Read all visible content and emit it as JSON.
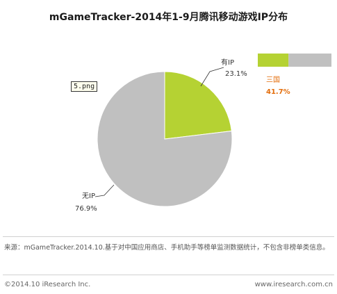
{
  "title": "mGameTracker-2014年1-9月腾讯移动游戏IP分布",
  "file_tag": "5.png",
  "colors": {
    "with_ip": "#b5d233",
    "without_ip": "#c0c0c0",
    "highlight": "#e36c09",
    "line": "#333333"
  },
  "chart_data": {
    "type": "pie",
    "title": "mGameTracker-2014年1-9月腾讯移动游戏IP分布",
    "slices": [
      {
        "label": "有IP",
        "value": 23.1,
        "value_label": "23.1%",
        "color": "#b5d233"
      },
      {
        "label": "无IP",
        "value": 76.9,
        "value_label": "76.9%",
        "color": "#c0c0c0"
      }
    ],
    "breakdown_bar": {
      "parent": "有IP",
      "segments": [
        {
          "label": "三国",
          "value": 41.7,
          "value_label": "41.7%",
          "color": "#b5d233"
        },
        {
          "label": "",
          "value": 58.3,
          "color": "#c0c0c0"
        }
      ]
    }
  },
  "source": "来源：mGameTracker.2014.10.基于对中国应用商店、手机助手等榜单监测数据统计，不包含非榜单类信息。",
  "footer": {
    "copyright": "©2014.10 iResearch Inc.",
    "site": "www.iresearch.com.cn"
  }
}
